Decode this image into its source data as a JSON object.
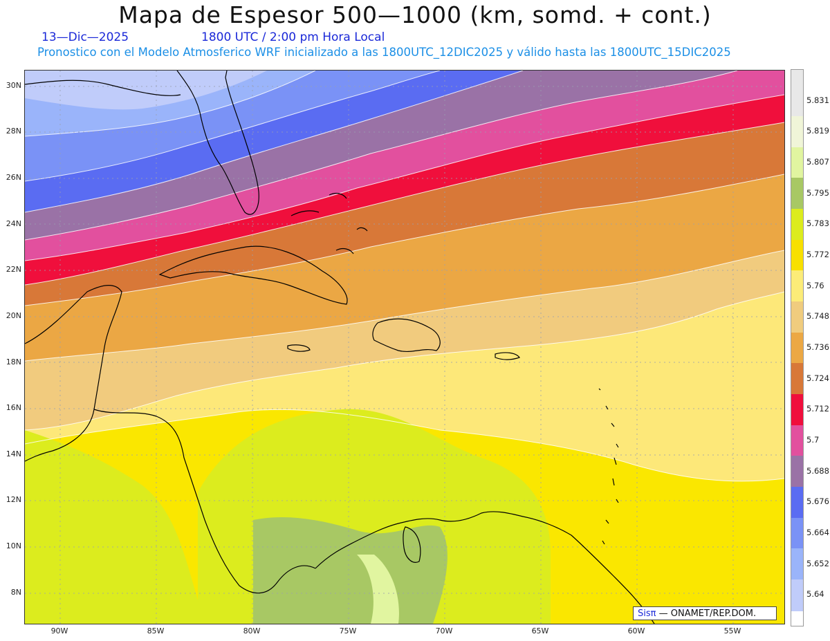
{
  "title": "Mapa de Espesor 500—1000 (km, somd. + cont.)",
  "date": "13—Dic—2025",
  "time": "1800 UTC / 2:00 pm Hora Local",
  "description": "Pronostico con el Modelo Atmosferico WRF inicializado a las 1800UTC_12DIC2025 y válido hasta las  1800UTC_15DIC2025",
  "lat_labels": [
    "30N",
    "28N",
    "26N",
    "24N",
    "22N",
    "20N",
    "18N",
    "16N",
    "14N",
    "12N",
    "10N",
    "8N"
  ],
  "lon_labels": [
    "90W",
    "85W",
    "80W",
    "75W",
    "70W",
    "65W",
    "60W",
    "55W"
  ],
  "colorbar": {
    "labels": [
      "5.831",
      "5.819",
      "5.807",
      "5.795",
      "5.783",
      "5.772",
      "5.76",
      "5.748",
      "5.736",
      "5.724",
      "5.712",
      "5.7",
      "5.688",
      "5.676",
      "5.664",
      "5.652",
      "5.64"
    ],
    "colors": [
      "#e8e8e8",
      "#f0f5d8",
      "#e1f5a0",
      "#a8c864",
      "#dcec1e",
      "#f8e000",
      "#fcec78",
      "#f0cc7e",
      "#ec a844",
      "#d87838",
      "#f00f3c",
      "#e2509e",
      "#9a72a6",
      "#5a6cf2",
      "#7a92f6",
      "#9ab4fa",
      "#c0ccfa"
    ]
  },
  "credit_brand": "Sisπ",
  "credit_org": " — ONAMET/REP.DOM."
}
